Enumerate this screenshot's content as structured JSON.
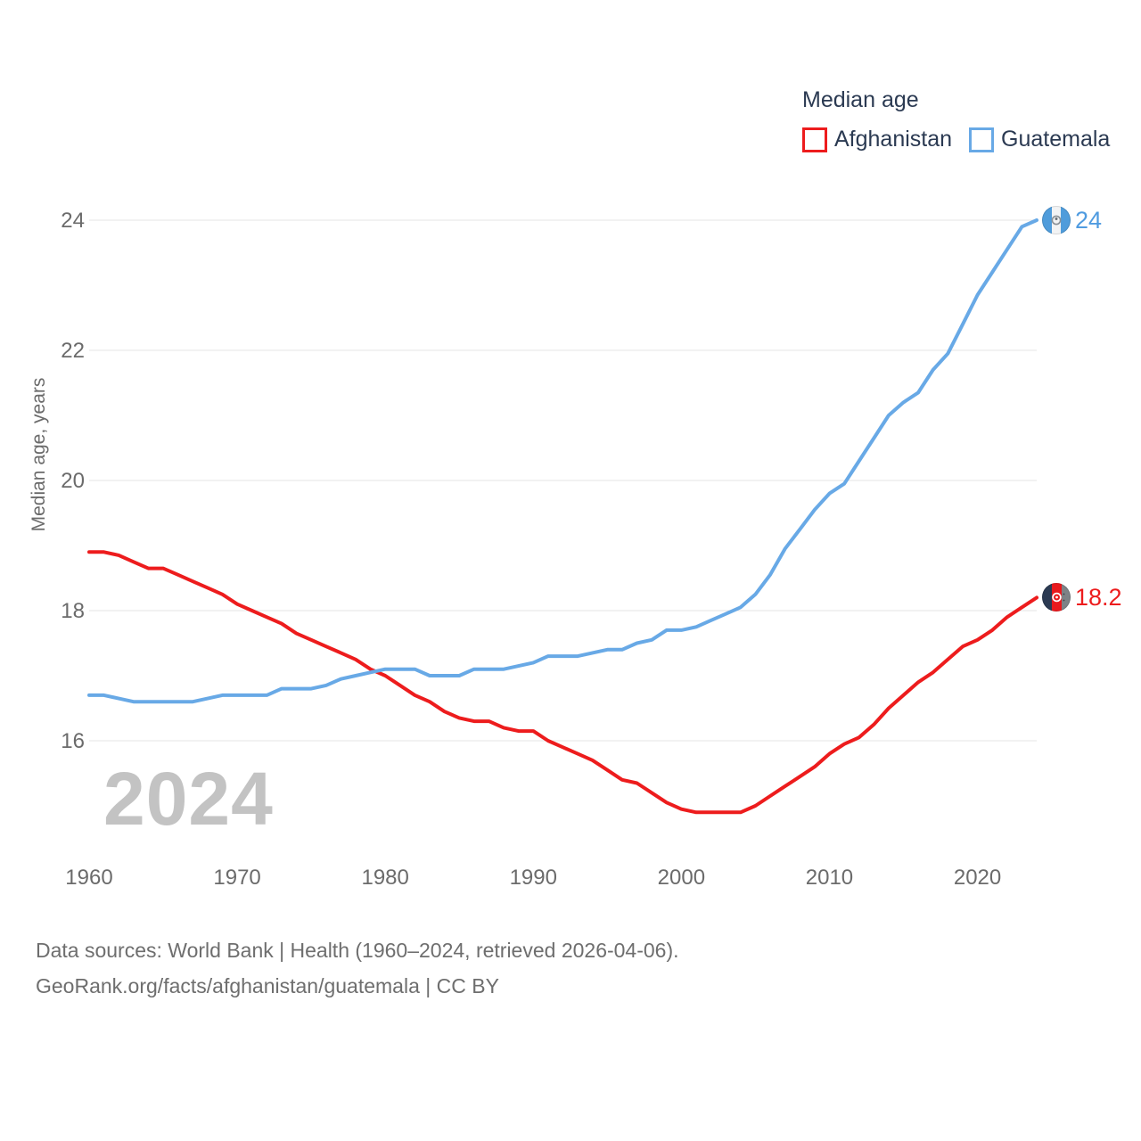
{
  "legend": {
    "title": "Median age",
    "series": [
      {
        "label": "Afghanistan",
        "color": "#ed1c1d"
      },
      {
        "label": "Guatemala",
        "color": "#68a9e6"
      }
    ]
  },
  "watermark": "2024",
  "end_labels": {
    "guatemala": {
      "text": "24",
      "color": "#4f9be0"
    },
    "afghanistan": {
      "text": "18.2",
      "color": "#ed1c1d"
    }
  },
  "footer": {
    "line1": "Data sources: World Bank | Health (1960–2024, retrieved 2026-04-06).",
    "line2": "GeoRank.org/facts/afghanistan/guatemala | CC BY"
  },
  "chart_data": {
    "type": "line",
    "title": "Median age",
    "ylabel": "Median age, years",
    "xlabel": "",
    "grid": "horizontal",
    "legend_position": "top-right",
    "xlim": [
      1960,
      2024
    ],
    "ylim": [
      14.5,
      24.3
    ],
    "y_ticks": [
      16,
      18,
      20,
      22,
      24
    ],
    "x_ticks": [
      1960,
      1970,
      1980,
      1990,
      2000,
      2010,
      2020
    ],
    "x": [
      1960,
      1961,
      1962,
      1963,
      1964,
      1965,
      1966,
      1967,
      1968,
      1969,
      1970,
      1971,
      1972,
      1973,
      1974,
      1975,
      1976,
      1977,
      1978,
      1979,
      1980,
      1981,
      1982,
      1983,
      1984,
      1985,
      1986,
      1987,
      1988,
      1989,
      1990,
      1991,
      1992,
      1993,
      1994,
      1995,
      1996,
      1997,
      1998,
      1999,
      2000,
      2001,
      2002,
      2003,
      2004,
      2005,
      2006,
      2007,
      2008,
      2009,
      2010,
      2011,
      2012,
      2013,
      2014,
      2015,
      2016,
      2017,
      2018,
      2019,
      2020,
      2021,
      2022,
      2023,
      2024
    ],
    "series": [
      {
        "name": "Afghanistan",
        "color": "#ed1c1d",
        "values": [
          18.9,
          18.9,
          18.85,
          18.75,
          18.65,
          18.65,
          18.55,
          18.45,
          18.35,
          18.25,
          18.1,
          18.0,
          17.9,
          17.8,
          17.65,
          17.55,
          17.45,
          17.35,
          17.25,
          17.1,
          17.0,
          16.85,
          16.7,
          16.6,
          16.45,
          16.35,
          16.3,
          16.3,
          16.2,
          16.15,
          16.15,
          16.0,
          15.9,
          15.8,
          15.7,
          15.55,
          15.4,
          15.35,
          15.2,
          15.05,
          14.95,
          14.9,
          14.9,
          14.9,
          14.9,
          15.0,
          15.15,
          15.3,
          15.45,
          15.6,
          15.8,
          15.95,
          16.05,
          16.25,
          16.5,
          16.7,
          16.9,
          17.05,
          17.25,
          17.45,
          17.55,
          17.7,
          17.9,
          18.05,
          18.2
        ]
      },
      {
        "name": "Guatemala",
        "color": "#68a9e6",
        "values": [
          16.7,
          16.7,
          16.65,
          16.6,
          16.6,
          16.6,
          16.6,
          16.6,
          16.65,
          16.7,
          16.7,
          16.7,
          16.7,
          16.8,
          16.8,
          16.8,
          16.85,
          16.95,
          17.0,
          17.05,
          17.1,
          17.1,
          17.1,
          17.0,
          17.0,
          17.0,
          17.1,
          17.1,
          17.1,
          17.15,
          17.2,
          17.3,
          17.3,
          17.3,
          17.35,
          17.4,
          17.4,
          17.5,
          17.55,
          17.7,
          17.7,
          17.75,
          17.85,
          17.95,
          18.05,
          18.25,
          18.55,
          18.95,
          19.25,
          19.55,
          19.8,
          19.95,
          20.3,
          20.65,
          21.0,
          21.2,
          21.35,
          21.7,
          21.95,
          22.4,
          22.85,
          23.2,
          23.55,
          23.9,
          24.0
        ]
      }
    ]
  }
}
